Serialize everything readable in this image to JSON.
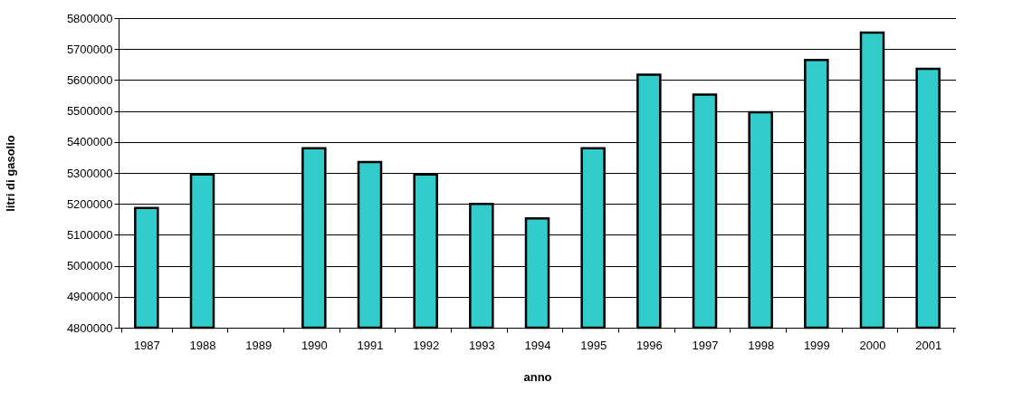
{
  "chart_data": {
    "type": "bar",
    "xlabel": "anno",
    "ylabel": "litri di gasolio",
    "categories": [
      "1987",
      "1988",
      "1989",
      "1990",
      "1991",
      "1992",
      "1993",
      "1994",
      "1995",
      "1996",
      "1997",
      "1998",
      "1999",
      "2000",
      "2001"
    ],
    "values": [
      5187000,
      5295000,
      null,
      5380000,
      5335000,
      5295000,
      5200000,
      5153000,
      5380000,
      5617000,
      5553000,
      5496000,
      5665000,
      5753000,
      5636000
    ],
    "color": "#33cccc",
    "ylim": [
      4800000,
      5800000
    ],
    "yticks": [
      4800000,
      4900000,
      5000000,
      5100000,
      5200000,
      5300000,
      5400000,
      5500000,
      5600000,
      5700000,
      5800000
    ],
    "grid": "y"
  }
}
